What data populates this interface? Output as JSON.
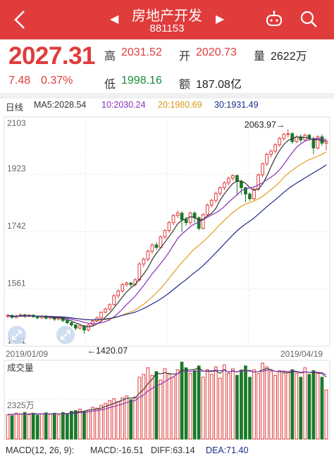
{
  "header": {
    "title": "房地产开发",
    "code": "881153",
    "back_icon": "‹",
    "prev_icon": "◀",
    "next_icon": "▶"
  },
  "quote": {
    "price": "2027.31",
    "change": "7.48",
    "change_pct": "0.37%",
    "high_label": "高",
    "high": "2031.52",
    "open_label": "开",
    "open": "2020.73",
    "volume_label": "量",
    "volume": "2622万",
    "low_label": "低",
    "low": "1998.16",
    "amount_label": "额",
    "amount": "187.08亿"
  },
  "kline_legend": {
    "period": "日线",
    "ma5": "MA5:2028.54",
    "ma10": "10:2030.24",
    "ma20": "20:1980.69",
    "ma30": "30:1931.49"
  },
  "colors": {
    "up": "#e03c3c",
    "down": "#1a7a2a",
    "ma5": "#333333",
    "ma10": "#8a2fb8",
    "ma20": "#e0a020",
    "ma30": "#1a2a8a"
  },
  "chart_data": [
    {
      "type": "candlestick",
      "y_ticks": [
        "2103",
        "1923",
        "1742",
        "1561",
        "1381"
      ],
      "ylim": [
        1381,
        2103
      ],
      "x_start": "2019/01/09",
      "x_end": "2019/04/19",
      "annotation_high": "2063.97→",
      "annotation_low": "←1420.07",
      "series": [
        {
          "name": "MA5",
          "value": "2028.54"
        },
        {
          "name": "10",
          "value": "2030.24"
        },
        {
          "name": "20",
          "value": "1980.69"
        },
        {
          "name": "30",
          "value": "1931.49"
        }
      ],
      "candles": [
        [
          1475,
          1478,
          1469,
          1483
        ],
        [
          1478,
          1472,
          1467,
          1481
        ],
        [
          1472,
          1476,
          1468,
          1480
        ],
        [
          1476,
          1480,
          1472,
          1484
        ],
        [
          1480,
          1475,
          1470,
          1483
        ],
        [
          1475,
          1479,
          1472,
          1482
        ],
        [
          1479,
          1474,
          1470,
          1481
        ],
        [
          1474,
          1470,
          1466,
          1477
        ],
        [
          1470,
          1476,
          1467,
          1479
        ],
        [
          1476,
          1469,
          1465,
          1478
        ],
        [
          1469,
          1473,
          1466,
          1476
        ],
        [
          1473,
          1466,
          1460,
          1475
        ],
        [
          1466,
          1470,
          1462,
          1473
        ],
        [
          1470,
          1462,
          1456,
          1472
        ],
        [
          1462,
          1455,
          1450,
          1465
        ],
        [
          1455,
          1448,
          1442,
          1458
        ],
        [
          1448,
          1438,
          1430,
          1450
        ],
        [
          1438,
          1445,
          1433,
          1447
        ],
        [
          1445,
          1432,
          1420,
          1447
        ],
        [
          1432,
          1448,
          1428,
          1452
        ],
        [
          1448,
          1460,
          1444,
          1462
        ],
        [
          1460,
          1470,
          1456,
          1475
        ],
        [
          1470,
          1488,
          1466,
          1490
        ],
        [
          1488,
          1498,
          1484,
          1502
        ],
        [
          1498,
          1512,
          1494,
          1516
        ],
        [
          1512,
          1540,
          1508,
          1545
        ],
        [
          1540,
          1555,
          1532,
          1560
        ],
        [
          1555,
          1575,
          1550,
          1580
        ],
        [
          1575,
          1580,
          1568,
          1585
        ],
        [
          1580,
          1575,
          1568,
          1583
        ],
        [
          1575,
          1590,
          1570,
          1595
        ],
        [
          1590,
          1640,
          1585,
          1645
        ],
        [
          1640,
          1655,
          1630,
          1660
        ],
        [
          1655,
          1680,
          1648,
          1685
        ],
        [
          1680,
          1700,
          1672,
          1705
        ],
        [
          1700,
          1692,
          1685,
          1708
        ],
        [
          1692,
          1725,
          1688,
          1730
        ],
        [
          1725,
          1745,
          1718,
          1750
        ],
        [
          1745,
          1770,
          1738,
          1775
        ],
        [
          1770,
          1792,
          1762,
          1798
        ],
        [
          1792,
          1800,
          1785,
          1808
        ],
        [
          1800,
          1780,
          1740,
          1805
        ],
        [
          1780,
          1770,
          1760,
          1788
        ],
        [
          1770,
          1800,
          1762,
          1805
        ],
        [
          1800,
          1785,
          1770,
          1806
        ],
        [
          1785,
          1752,
          1745,
          1790
        ],
        [
          1752,
          1795,
          1748,
          1800
        ],
        [
          1795,
          1825,
          1790,
          1830
        ],
        [
          1825,
          1840,
          1818,
          1845
        ],
        [
          1840,
          1862,
          1832,
          1868
        ],
        [
          1862,
          1880,
          1855,
          1885
        ],
        [
          1880,
          1895,
          1872,
          1900
        ],
        [
          1895,
          1910,
          1888,
          1915
        ],
        [
          1910,
          1918,
          1902,
          1922
        ],
        [
          1918,
          1900,
          1858,
          1922
        ],
        [
          1900,
          1880,
          1858,
          1905
        ],
        [
          1880,
          1860,
          1835,
          1882
        ],
        [
          1860,
          1845,
          1838,
          1865
        ],
        [
          1845,
          1875,
          1840,
          1880
        ],
        [
          1875,
          1920,
          1870,
          1925
        ],
        [
          1920,
          1955,
          1912,
          1960
        ],
        [
          1955,
          1985,
          1948,
          1990
        ],
        [
          1985,
          1995,
          1975,
          2000
        ],
        [
          1995,
          2015,
          1988,
          2020
        ],
        [
          2015,
          2035,
          2008,
          2040
        ],
        [
          2035,
          2048,
          2028,
          2052
        ],
        [
          2048,
          2050,
          2038,
          2064
        ],
        [
          2050,
          2025,
          2018,
          2055
        ],
        [
          2025,
          2040,
          2020,
          2045
        ],
        [
          2040,
          2030,
          2022,
          2048
        ],
        [
          2030,
          2045,
          2025,
          2050
        ],
        [
          2045,
          2035,
          2028,
          2050
        ],
        [
          2035,
          2005,
          1985,
          2040
        ],
        [
          2005,
          2040,
          2000,
          2045
        ],
        [
          2040,
          2020,
          2012,
          2048
        ],
        [
          2020,
          2027,
          1998,
          2032
        ]
      ]
    },
    {
      "type": "bar",
      "title": "成交量",
      "y_tick": "2325万",
      "ylim": [
        0,
        4200
      ],
      "values": [
        1300,
        1250,
        1380,
        1350,
        1420,
        1300,
        1380,
        1280,
        1350,
        1400,
        1320,
        1380,
        1300,
        1420,
        1350,
        1480,
        1520,
        1600,
        1480,
        1550,
        1700,
        1650,
        1800,
        1900,
        2050,
        2150,
        2000,
        2200,
        2300,
        2100,
        2250,
        3300,
        3450,
        3800,
        3400,
        3600,
        3150,
        3750,
        3500,
        3300,
        3700,
        4100,
        3800,
        3500,
        3650,
        3900,
        3300,
        3700,
        3450,
        3850,
        3250,
        3950,
        3500,
        3750,
        3400,
        3600,
        3900,
        3300,
        3700,
        3500,
        4050,
        3850,
        3600,
        3400,
        3650,
        3500,
        3600,
        3700,
        3500,
        3300,
        3800,
        3450,
        3650,
        3500,
        3300,
        2622
      ],
      "ma_lines": [
        {
          "name": "MA5",
          "values": [
            1330,
            1320,
            1340,
            1330,
            1340,
            1340,
            1360,
            1350,
            1340,
            1350,
            1340,
            1360,
            1350,
            1360,
            1360,
            1390,
            1420,
            1470,
            1490,
            1540,
            1580,
            1600,
            1650,
            1740,
            1820,
            1900,
            1990,
            2080,
            2170,
            2190,
            2190,
            2450,
            2660,
            2950,
            3190,
            3510,
            3480,
            3540,
            3480,
            3460,
            3480,
            3670,
            3680,
            3680,
            3720,
            3790,
            3630,
            3610,
            3600,
            3640,
            3510,
            3710,
            3560,
            3650,
            3570,
            3690,
            3630,
            3630,
            3580,
            3600,
            3690,
            3760,
            3710,
            3610,
            3600,
            3570,
            3530,
            3590,
            3590,
            3520,
            3580,
            3550,
            3550,
            3540,
            3480,
            3310
          ]
        },
        {
          "name": "MA10",
          "values": [
            1330,
            1320,
            1330,
            1330,
            1330,
            1330,
            1340,
            1340,
            1340,
            1340,
            1340,
            1350,
            1350,
            1350,
            1350,
            1370,
            1380,
            1410,
            1420,
            1450,
            1490,
            1510,
            1560,
            1610,
            1680,
            1740,
            1800,
            1870,
            1950,
            2000,
            2060,
            2220,
            2360,
            2560,
            2700,
            2850,
            2920,
            3060,
            3210,
            3320,
            3490,
            3580,
            3610,
            3600,
            3600,
            3640,
            3620,
            3640,
            3640,
            3680,
            3650,
            3670,
            3580,
            3620,
            3590,
            3640,
            3630,
            3670,
            3570,
            3600,
            3600,
            3670,
            3670,
            3610,
            3590,
            3630,
            3600,
            3650,
            3610,
            3560,
            3590,
            3560,
            3580,
            3560,
            3540,
            3430
          ]
        }
      ]
    },
    {
      "type": "macd",
      "params_label": "MACD(12, 26, 9):",
      "macd_label": "MACD:-16.51",
      "diff_label": "DIFF:63.14",
      "dea_label": "DEA:71.40"
    }
  ]
}
